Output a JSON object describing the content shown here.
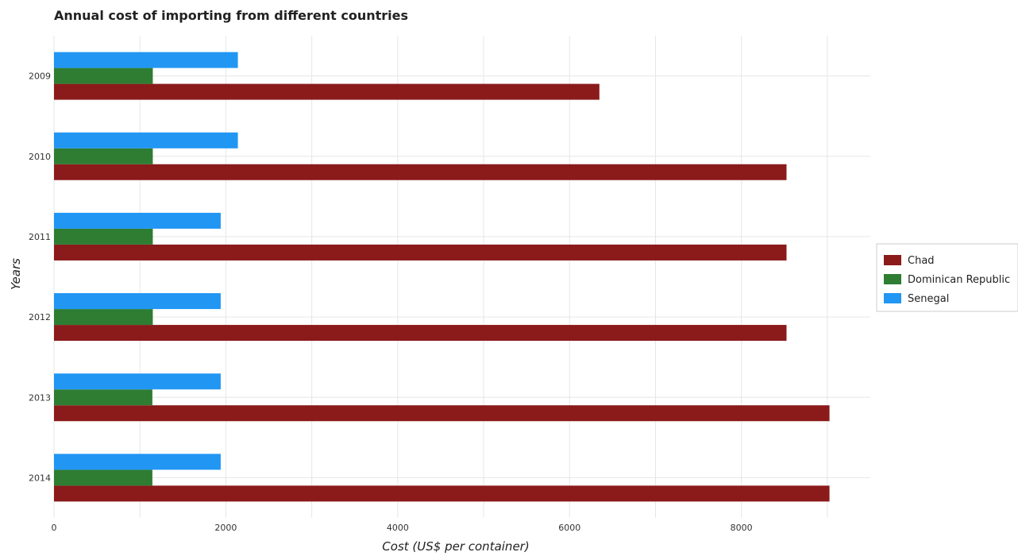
{
  "chart_data": {
    "type": "bar",
    "orientation": "horizontal",
    "title": "Annual cost of importing from different countries",
    "xlabel": "Cost (US$ per container)",
    "ylabel": "Years",
    "categories": [
      "2009",
      "2010",
      "2011",
      "2012",
      "2013",
      "2014"
    ],
    "xlim": [
      0,
      9500
    ],
    "xticks": [
      0,
      2000,
      4000,
      6000,
      8000
    ],
    "xtick_labels": [
      "0",
      "2000",
      "4000",
      "6000",
      "8000"
    ],
    "grid": true,
    "legend_position": "right",
    "series": [
      {
        "name": "Chad",
        "color": "#8b1a1a",
        "values": [
          6347,
          8525,
          8525,
          8525,
          9025,
          9025
        ]
      },
      {
        "name": "Dominican Republic",
        "color": "#2e7d32",
        "values": [
          1150,
          1150,
          1150,
          1150,
          1145,
          1145
        ]
      },
      {
        "name": "Senegal",
        "color": "#2196f3",
        "values": [
          2140,
          2140,
          1940,
          1940,
          1940,
          1940
        ]
      }
    ]
  }
}
